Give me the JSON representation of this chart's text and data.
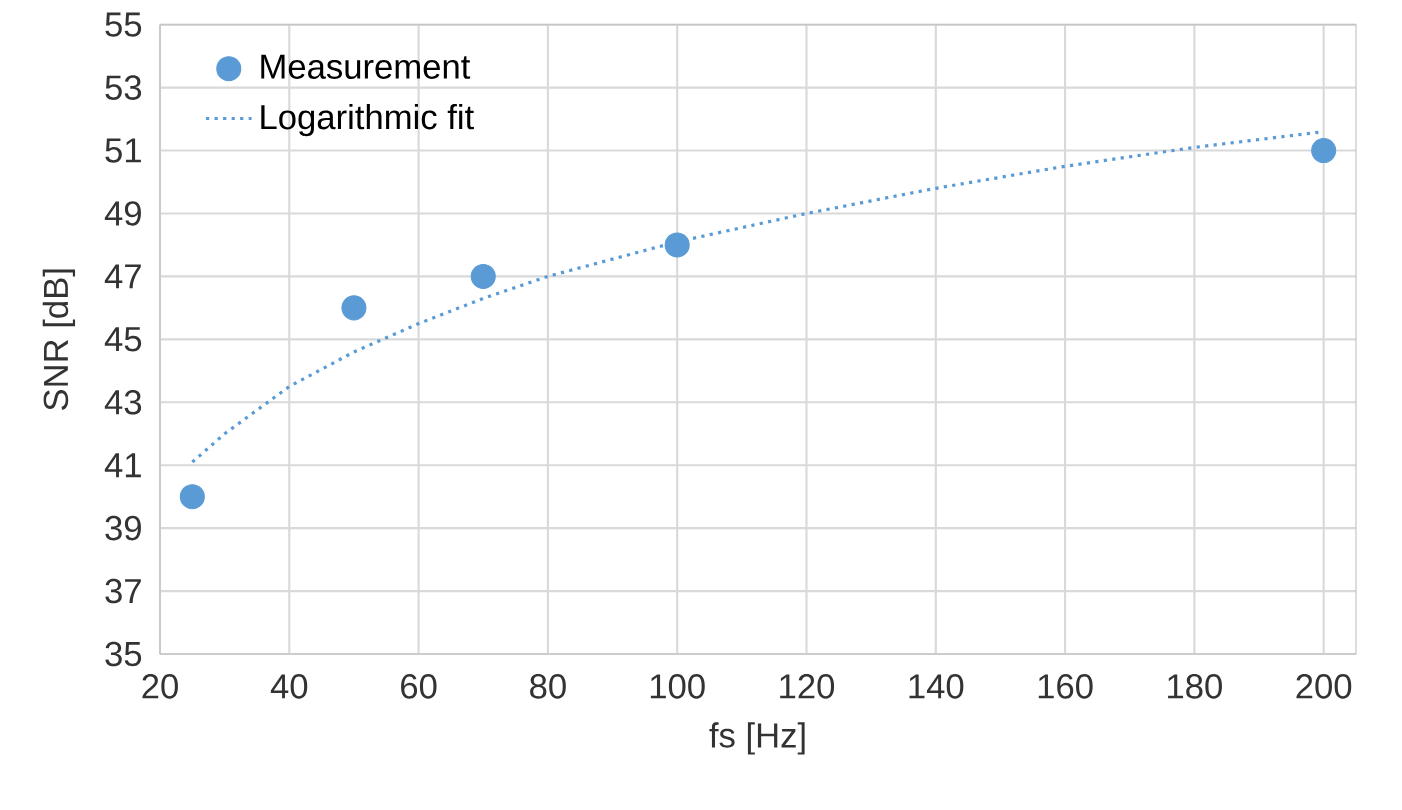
{
  "chart_data": {
    "type": "scatter",
    "xlabel": "fs [Hz]",
    "ylabel": "SNR [dB]",
    "xlim": [
      20,
      205
    ],
    "ylim": [
      35,
      55
    ],
    "xticks": [
      20,
      40,
      60,
      80,
      100,
      120,
      140,
      160,
      180,
      200
    ],
    "yticks": [
      35,
      37,
      39,
      41,
      43,
      45,
      47,
      49,
      51,
      53,
      55
    ],
    "grid": true,
    "legend": "top left",
    "series": [
      {
        "name": "Measurement",
        "color": "#5b9bd5",
        "marker": "circle",
        "x": [
          25,
          50,
          70,
          100,
          200
        ],
        "values": [
          40,
          46,
          47,
          48,
          51
        ]
      },
      {
        "name": "Logarithmic fit",
        "type": "line",
        "color": "#5b9bd5",
        "line_style": "dotted",
        "marker": "none",
        "x": [
          25,
          30,
          40,
          50,
          60,
          70,
          80,
          100,
          120,
          140,
          160,
          180,
          200
        ],
        "values": [
          41.1,
          42.0,
          43.5,
          44.6,
          45.5,
          46.3,
          47.0,
          48.1,
          49.0,
          49.8,
          50.5,
          51.1,
          51.6
        ]
      }
    ]
  }
}
